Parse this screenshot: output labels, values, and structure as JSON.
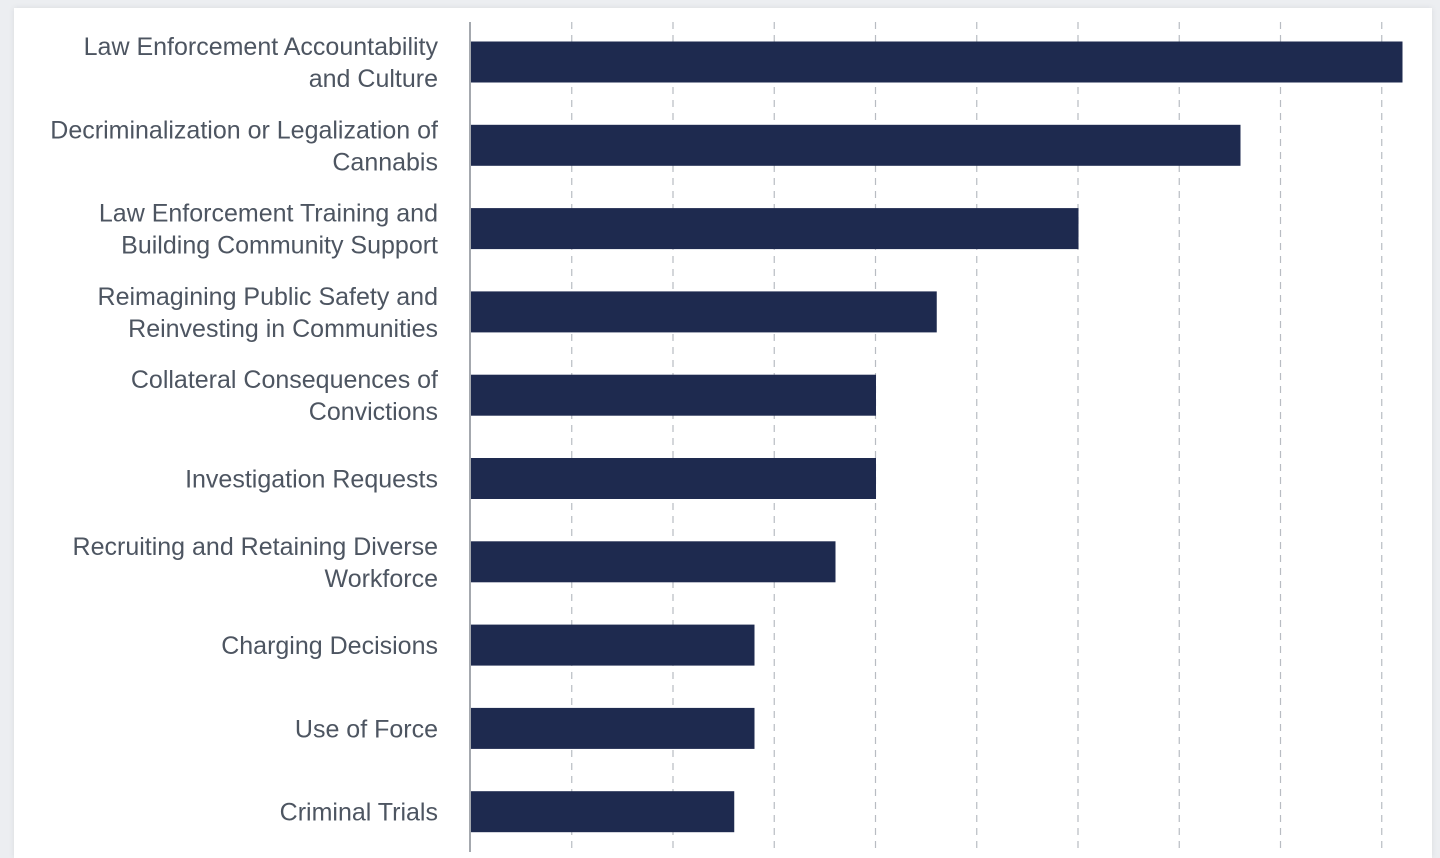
{
  "chart_data": {
    "type": "bar",
    "orientation": "horizontal",
    "categories": [
      [
        "Law Enforcement Accountability",
        "and Culture"
      ],
      [
        "Decriminalization or Legalization of",
        "Cannabis"
      ],
      [
        "Law Enforcement Training and",
        "Building Community Support"
      ],
      [
        "Reimagining Public Safety and",
        "Reinvesting in Communities"
      ],
      [
        "Collateral Consequences of",
        "Convictions"
      ],
      [
        "Investigation Requests"
      ],
      [
        "Recruiting and Retaining Diverse",
        "Workforce"
      ],
      [
        "Charging Decisions"
      ],
      [
        "Use of Force"
      ],
      [
        "Criminal Trials"
      ]
    ],
    "values": [
      46,
      38,
      30,
      23,
      20,
      20,
      18,
      14,
      14,
      13
    ],
    "xlim": [
      0,
      46
    ],
    "grid": true,
    "grid_interval": 5,
    "bar_color": "#1e2a4f",
    "title": "",
    "xlabel": "",
    "ylabel": ""
  }
}
